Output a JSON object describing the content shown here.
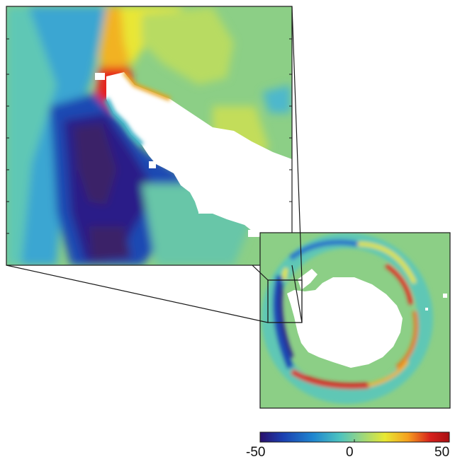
{
  "figure": {
    "description_free": true,
    "colormap": {
      "name": "jet",
      "stops": [
        "#2a0f6b",
        "#1a3fb0",
        "#1f86d0",
        "#4cc3c0",
        "#8fd48a",
        "#e8e832",
        "#f6a01e",
        "#d7201c",
        "#a80f12"
      ],
      "min": -50,
      "max": 50,
      "tick_labels": [
        "-50",
        "0",
        "50"
      ]
    },
    "background_value_color": "#8ccf86",
    "land_color": "#ffffff",
    "frame_color": "#1a1a1a"
  }
}
